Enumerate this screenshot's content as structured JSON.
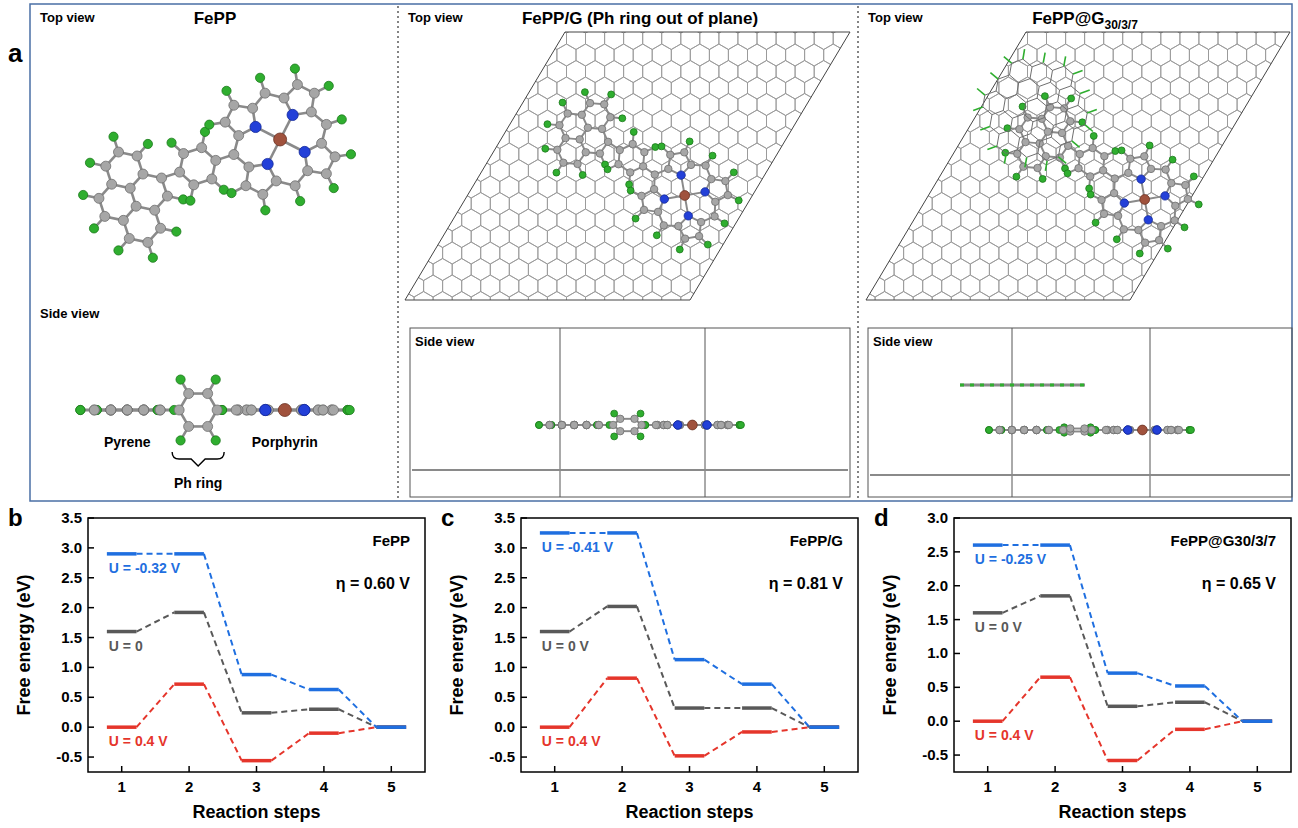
{
  "figure_a": {
    "panel_label": "a",
    "panels": [
      {
        "title": "FePP",
        "top_view": "Top view",
        "side_view": "Side view",
        "parts": [
          "Pyrene",
          "Ph ring",
          "Porphyrin"
        ]
      },
      {
        "title": "FePP/G (Ph ring out of plane)",
        "top_view": "Top view",
        "side_view": "Side view"
      },
      {
        "title": "FePP@G",
        "title_subscript": "30/3/7",
        "top_view": "Top view",
        "side_view": "Side view"
      }
    ]
  },
  "chart_data": [
    {
      "type": "step",
      "panel_label": "b",
      "title": "FePP",
      "annotation": "η = 0.60 V",
      "x_label": "Reaction steps",
      "y_label": "Free energy (eV)",
      "x": [
        1,
        2,
        3,
        4,
        5
      ],
      "xlim": [
        0.5,
        5.5
      ],
      "xticks": [
        1,
        2,
        3,
        4,
        5
      ],
      "ylim": [
        -0.75,
        3.5
      ],
      "yticks": [
        -0.5,
        {
          "value": 0,
          "label": "0.0"
        },
        0.5,
        {
          "value": 1,
          "label": "1.0"
        },
        1.5,
        {
          "value": 2,
          "label": "2.0"
        },
        2.5,
        {
          "value": 3,
          "label": "3.0"
        },
        3.5
      ],
      "line_style": "dashed",
      "series": [
        {
          "name": "U = -0.32 V",
          "color": "#1f6fe0",
          "values": [
            2.9,
            2.9,
            0.88,
            0.63,
            0
          ]
        },
        {
          "name": "U = 0",
          "color": "#595959",
          "values": [
            1.6,
            1.92,
            0.24,
            0.3,
            0
          ]
        },
        {
          "name": "U = 0.4 V",
          "color": "#e5352b",
          "values": [
            0,
            0.72,
            -0.56,
            -0.1,
            0
          ]
        }
      ]
    },
    {
      "type": "step",
      "panel_label": "c",
      "title": "FePP/G",
      "annotation": "η = 0.81 V",
      "x_label": "Reaction steps",
      "y_label": "Free energy (eV)",
      "x": [
        1,
        2,
        3,
        4,
        5
      ],
      "xlim": [
        0.5,
        5.5
      ],
      "xticks": [
        1,
        2,
        3,
        4,
        5
      ],
      "ylim": [
        -0.75,
        3.5
      ],
      "yticks": [
        -0.5,
        {
          "value": 0,
          "label": "0.0"
        },
        0.5,
        {
          "value": 1,
          "label": "1.0"
        },
        1.5,
        {
          "value": 2,
          "label": "2.0"
        },
        2.5,
        {
          "value": 3,
          "label": "3.0"
        },
        3.5
      ],
      "line_style": "dashed",
      "series": [
        {
          "name": "U = -0.41 V",
          "color": "#1f6fe0",
          "values": [
            3.25,
            3.25,
            1.13,
            0.72,
            0
          ]
        },
        {
          "name": "U = 0 V",
          "color": "#595959",
          "values": [
            1.6,
            2.02,
            0.32,
            0.32,
            0
          ]
        },
        {
          "name": "U = 0.4 V",
          "color": "#e5352b",
          "values": [
            0,
            0.82,
            -0.48,
            -0.08,
            0
          ]
        }
      ]
    },
    {
      "type": "step",
      "panel_label": "d",
      "title": "FePP@G30/3/7",
      "annotation": "η = 0.65 V",
      "x_label": "Reaction steps",
      "y_label": "Free energy (eV)",
      "x": [
        1,
        2,
        3,
        4,
        5
      ],
      "xlim": [
        0.5,
        5.5
      ],
      "xticks": [
        1,
        2,
        3,
        4,
        5
      ],
      "ylim": [
        -0.75,
        3.0
      ],
      "yticks": [
        -0.5,
        {
          "value": 0,
          "label": "0.0"
        },
        0.5,
        {
          "value": 1,
          "label": "1.0"
        },
        1.5,
        {
          "value": 2,
          "label": "2.0"
        },
        2.5,
        {
          "value": 3,
          "label": "3.0"
        }
      ],
      "line_style": "dashed",
      "series": [
        {
          "name": "U = -0.25 V",
          "color": "#1f6fe0",
          "values": [
            2.6,
            2.6,
            0.71,
            0.52,
            0
          ]
        },
        {
          "name": "U = 0 V",
          "color": "#595959",
          "values": [
            1.6,
            1.85,
            0.22,
            0.28,
            0
          ]
        },
        {
          "name": "U = 0.4 V",
          "color": "#e5352b",
          "values": [
            0,
            0.65,
            -0.58,
            -0.12,
            0
          ]
        }
      ]
    }
  ]
}
